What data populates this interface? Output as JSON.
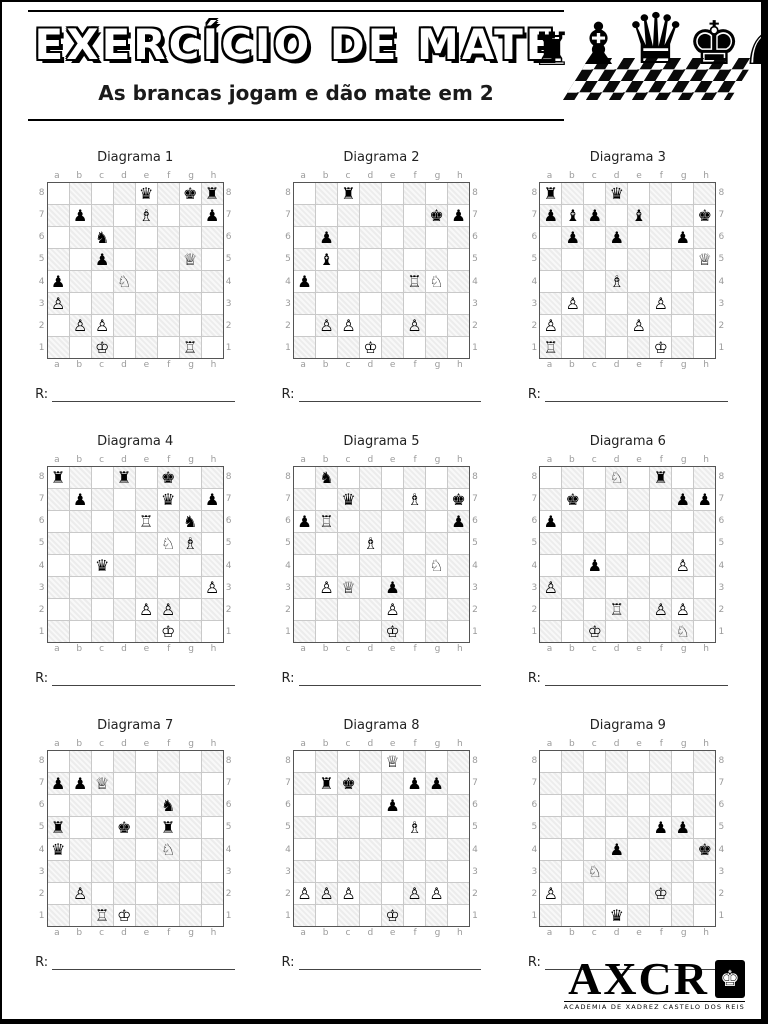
{
  "page": {
    "title": "EXERCÍCIO DE MATE",
    "subtitle": "As brancas jogam e dão mate em 2",
    "answer_label": "R:",
    "files": [
      "a",
      "b",
      "c",
      "d",
      "e",
      "f",
      "g",
      "h"
    ],
    "ranks": [
      "8",
      "7",
      "6",
      "5",
      "4",
      "3",
      "2",
      "1"
    ]
  },
  "decor": {
    "header_pieces": [
      "rook-icon",
      "bishop-icon",
      "queen-icon",
      "king-icon",
      "knight-icon"
    ],
    "header_piece_glyphs": [
      "♜",
      "♝",
      "♛",
      "♚",
      "♞"
    ],
    "accent_black": "#000000",
    "board_dark_square": "#ececec",
    "board_light_square": "#ffffff"
  },
  "diagrams": [
    {
      "label": "Diagrama 1",
      "rows": [
        "....q.kr",
        ".p..B..p",
        "..n.....",
        "..p...Q.",
        "p..N....",
        "P.......",
        ".PP.....",
        "..K...R."
      ]
    },
    {
      "label": "Diagrama 2",
      "rows": [
        "..r.....",
        "......kp",
        ".p......",
        ".b......",
        "p....RN.",
        "........",
        ".PP..P..",
        "...K...."
      ]
    },
    {
      "label": "Diagrama 3",
      "rows": [
        "r..q....",
        "pbp.b..k",
        ".p.p..p.",
        ".......Q",
        "...B....",
        ".P...P..",
        "P...P...",
        "R....K.."
      ]
    },
    {
      "label": "Diagrama 4",
      "rows": [
        "r..r.k..",
        ".p...q.p",
        "....R.n.",
        ".....NB.",
        "..q.....",
        ".......P",
        "....PP..",
        ".....K.."
      ]
    },
    {
      "label": "Diagrama 5",
      "rows": [
        ".n......",
        "..q..B.k",
        "pR.....p",
        "...B....",
        "......N.",
        ".PQ.p...",
        "....P...",
        "....K..."
      ]
    },
    {
      "label": "Diagrama 6",
      "rows": [
        "...N.r..",
        ".k....pp",
        "p.......",
        "........",
        "..p...P.",
        "P.......",
        "...R.PP.",
        "..K...N."
      ]
    },
    {
      "label": "Diagrama 7",
      "rows": [
        "........",
        "ppQ.....",
        ".....n..",
        "r..k.r..",
        "q....N..",
        "........",
        ".P......",
        "..RK...."
      ]
    },
    {
      "label": "Diagrama 8",
      "rows": [
        "....Q...",
        ".rk..pp.",
        "....p...",
        ".....B..",
        "........",
        "........",
        "PPP..PP.",
        "....K..."
      ]
    },
    {
      "label": "Diagrama 9",
      "rows": [
        "........",
        "........",
        "........",
        ".....pp.",
        "...p...k",
        "..N.....",
        "P....K..",
        "...q...."
      ]
    }
  ],
  "footer": {
    "logo_text": "AXCR",
    "logo_subtext": "ACADEMIA DE XADREZ CASTELO DOS REIS"
  }
}
